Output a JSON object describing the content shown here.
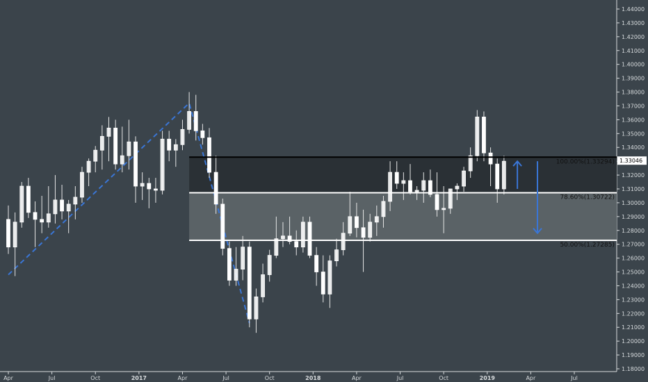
{
  "colors": {
    "background": "#3b444b",
    "axis_line": "#d8dcde",
    "text": "#d8dcde",
    "candle_up": "#ffffff",
    "candle_down": "#ffffff",
    "wick": "#e8e8e8",
    "trend_line": "#3a76d6",
    "zone_upper": "#2a3035",
    "zone_lower": "#5a6266",
    "level_line_top": "#000000",
    "level_line": "#ffffff",
    "price_marker_bg": "#ffffff",
    "price_marker_text": "#000000",
    "arrow": "#3a76d6"
  },
  "chart_data": {
    "type": "candlestick",
    "title": "",
    "xlabel": "",
    "ylabel": "",
    "ylim": [
      1.18,
      1.45
    ],
    "y_ticks": [
      "1.18000",
      "1.19000",
      "1.20000",
      "1.21000",
      "1.22000",
      "1.23000",
      "1.24000",
      "1.25000",
      "1.26000",
      "1.27000",
      "1.28000",
      "1.29000",
      "1.30000",
      "1.31000",
      "1.32000",
      "1.33000",
      "1.34000",
      "1.35000",
      "1.36000",
      "1.37000",
      "1.38000",
      "1.39000",
      "1.40000",
      "1.41000",
      "1.42000",
      "1.43000",
      "1.44000"
    ],
    "x_ticks": [
      {
        "label": "Apr",
        "week": 0,
        "bold": false
      },
      {
        "label": "Jul",
        "week": 13,
        "bold": false
      },
      {
        "label": "Oct",
        "week": 26,
        "bold": false
      },
      {
        "label": "2017",
        "week": 39,
        "bold": true
      },
      {
        "label": "Apr",
        "week": 52,
        "bold": false
      },
      {
        "label": "Jul",
        "week": 65,
        "bold": false
      },
      {
        "label": "Oct",
        "week": 78,
        "bold": false
      },
      {
        "label": "2018",
        "week": 91,
        "bold": true
      },
      {
        "label": "Apr",
        "week": 104,
        "bold": false
      },
      {
        "label": "Jul",
        "week": 117,
        "bold": false
      },
      {
        "label": "Oct",
        "week": 130,
        "bold": false
      },
      {
        "label": "2019",
        "week": 143,
        "bold": true
      },
      {
        "label": "Apr",
        "week": 156,
        "bold": false
      },
      {
        "label": "Jul",
        "week": 169,
        "bold": false
      }
    ],
    "week_range": [
      0,
      182
    ],
    "candles": [
      {
        "w": 0,
        "o": 1.288,
        "h": 1.298,
        "l": 1.263,
        "c": 1.268
      },
      {
        "w": 2,
        "o": 1.268,
        "h": 1.293,
        "l": 1.247,
        "c": 1.286
      },
      {
        "w": 4,
        "o": 1.286,
        "h": 1.315,
        "l": 1.282,
        "c": 1.312
      },
      {
        "w": 6,
        "o": 1.312,
        "h": 1.318,
        "l": 1.289,
        "c": 1.293
      },
      {
        "w": 8,
        "o": 1.293,
        "h": 1.301,
        "l": 1.268,
        "c": 1.288
      },
      {
        "w": 10,
        "o": 1.288,
        "h": 1.305,
        "l": 1.278,
        "c": 1.286
      },
      {
        "w": 12,
        "o": 1.286,
        "h": 1.312,
        "l": 1.282,
        "c": 1.292
      },
      {
        "w": 14,
        "o": 1.292,
        "h": 1.32,
        "l": 1.285,
        "c": 1.302
      },
      {
        "w": 16,
        "o": 1.302,
        "h": 1.313,
        "l": 1.288,
        "c": 1.294
      },
      {
        "w": 18,
        "o": 1.294,
        "h": 1.302,
        "l": 1.278,
        "c": 1.299
      },
      {
        "w": 20,
        "o": 1.299,
        "h": 1.312,
        "l": 1.288,
        "c": 1.304
      },
      {
        "w": 22,
        "o": 1.304,
        "h": 1.326,
        "l": 1.3,
        "c": 1.322
      },
      {
        "w": 24,
        "o": 1.322,
        "h": 1.332,
        "l": 1.312,
        "c": 1.33
      },
      {
        "w": 26,
        "o": 1.33,
        "h": 1.341,
        "l": 1.322,
        "c": 1.338
      },
      {
        "w": 28,
        "o": 1.338,
        "h": 1.356,
        "l": 1.324,
        "c": 1.348
      },
      {
        "w": 30,
        "o": 1.348,
        "h": 1.362,
        "l": 1.33,
        "c": 1.354
      },
      {
        "w": 32,
        "o": 1.354,
        "h": 1.36,
        "l": 1.324,
        "c": 1.328
      },
      {
        "w": 34,
        "o": 1.328,
        "h": 1.355,
        "l": 1.322,
        "c": 1.334
      },
      {
        "w": 36,
        "o": 1.334,
        "h": 1.36,
        "l": 1.324,
        "c": 1.344
      },
      {
        "w": 38,
        "o": 1.344,
        "h": 1.348,
        "l": 1.3,
        "c": 1.312
      },
      {
        "w": 40,
        "o": 1.312,
        "h": 1.322,
        "l": 1.302,
        "c": 1.314
      },
      {
        "w": 42,
        "o": 1.314,
        "h": 1.318,
        "l": 1.296,
        "c": 1.31
      },
      {
        "w": 44,
        "o": 1.31,
        "h": 1.318,
        "l": 1.3,
        "c": 1.309
      },
      {
        "w": 46,
        "o": 1.309,
        "h": 1.352,
        "l": 1.306,
        "c": 1.346
      },
      {
        "w": 48,
        "o": 1.346,
        "h": 1.352,
        "l": 1.33,
        "c": 1.338
      },
      {
        "w": 50,
        "o": 1.338,
        "h": 1.346,
        "l": 1.326,
        "c": 1.342
      },
      {
        "w": 52,
        "o": 1.342,
        "h": 1.36,
        "l": 1.338,
        "c": 1.353
      },
      {
        "w": 54,
        "o": 1.353,
        "h": 1.38,
        "l": 1.35,
        "c": 1.366
      },
      {
        "w": 56,
        "o": 1.366,
        "h": 1.378,
        "l": 1.345,
        "c": 1.352
      },
      {
        "w": 58,
        "o": 1.352,
        "h": 1.357,
        "l": 1.342,
        "c": 1.347
      },
      {
        "w": 60,
        "o": 1.347,
        "h": 1.354,
        "l": 1.318,
        "c": 1.322
      },
      {
        "w": 62,
        "o": 1.322,
        "h": 1.334,
        "l": 1.292,
        "c": 1.299
      },
      {
        "w": 64,
        "o": 1.299,
        "h": 1.303,
        "l": 1.262,
        "c": 1.267
      },
      {
        "w": 66,
        "o": 1.267,
        "h": 1.272,
        "l": 1.24,
        "c": 1.244
      },
      {
        "w": 68,
        "o": 1.244,
        "h": 1.268,
        "l": 1.24,
        "c": 1.252
      },
      {
        "w": 70,
        "o": 1.252,
        "h": 1.276,
        "l": 1.244,
        "c": 1.268
      },
      {
        "w": 72,
        "o": 1.268,
        "h": 1.272,
        "l": 1.21,
        "c": 1.216
      },
      {
        "w": 74,
        "o": 1.216,
        "h": 1.238,
        "l": 1.206,
        "c": 1.232
      },
      {
        "w": 76,
        "o": 1.232,
        "h": 1.256,
        "l": 1.228,
        "c": 1.248
      },
      {
        "w": 78,
        "o": 1.248,
        "h": 1.266,
        "l": 1.243,
        "c": 1.262
      },
      {
        "w": 80,
        "o": 1.262,
        "h": 1.29,
        "l": 1.26,
        "c": 1.274
      },
      {
        "w": 82,
        "o": 1.274,
        "h": 1.286,
        "l": 1.268,
        "c": 1.276
      },
      {
        "w": 84,
        "o": 1.276,
        "h": 1.29,
        "l": 1.27,
        "c": 1.272
      },
      {
        "w": 86,
        "o": 1.272,
        "h": 1.28,
        "l": 1.262,
        "c": 1.268
      },
      {
        "w": 88,
        "o": 1.268,
        "h": 1.29,
        "l": 1.264,
        "c": 1.286
      },
      {
        "w": 90,
        "o": 1.286,
        "h": 1.29,
        "l": 1.26,
        "c": 1.262
      },
      {
        "w": 92,
        "o": 1.262,
        "h": 1.268,
        "l": 1.24,
        "c": 1.25
      },
      {
        "w": 94,
        "o": 1.25,
        "h": 1.262,
        "l": 1.228,
        "c": 1.234
      },
      {
        "w": 96,
        "o": 1.234,
        "h": 1.262,
        "l": 1.224,
        "c": 1.258
      },
      {
        "w": 98,
        "o": 1.258,
        "h": 1.274,
        "l": 1.254,
        "c": 1.266
      },
      {
        "w": 100,
        "o": 1.266,
        "h": 1.286,
        "l": 1.262,
        "c": 1.278
      },
      {
        "w": 102,
        "o": 1.278,
        "h": 1.308,
        "l": 1.276,
        "c": 1.29
      },
      {
        "w": 104,
        "o": 1.29,
        "h": 1.3,
        "l": 1.275,
        "c": 1.282
      },
      {
        "w": 106,
        "o": 1.282,
        "h": 1.295,
        "l": 1.25,
        "c": 1.275
      },
      {
        "w": 108,
        "o": 1.275,
        "h": 1.292,
        "l": 1.272,
        "c": 1.286
      },
      {
        "w": 110,
        "o": 1.286,
        "h": 1.298,
        "l": 1.276,
        "c": 1.29
      },
      {
        "w": 112,
        "o": 1.29,
        "h": 1.305,
        "l": 1.282,
        "c": 1.301
      },
      {
        "w": 114,
        "o": 1.301,
        "h": 1.33,
        "l": 1.294,
        "c": 1.322
      },
      {
        "w": 116,
        "o": 1.322,
        "h": 1.33,
        "l": 1.31,
        "c": 1.314
      },
      {
        "w": 118,
        "o": 1.314,
        "h": 1.322,
        "l": 1.302,
        "c": 1.316
      },
      {
        "w": 120,
        "o": 1.316,
        "h": 1.328,
        "l": 1.306,
        "c": 1.308
      },
      {
        "w": 122,
        "o": 1.308,
        "h": 1.312,
        "l": 1.302,
        "c": 1.309
      },
      {
        "w": 124,
        "o": 1.309,
        "h": 1.322,
        "l": 1.3,
        "c": 1.316
      },
      {
        "w": 126,
        "o": 1.316,
        "h": 1.324,
        "l": 1.304,
        "c": 1.306
      },
      {
        "w": 128,
        "o": 1.306,
        "h": 1.322,
        "l": 1.29,
        "c": 1.295
      },
      {
        "w": 130,
        "o": 1.295,
        "h": 1.312,
        "l": 1.278,
        "c": 1.296
      },
      {
        "w": 132,
        "o": 1.296,
        "h": 1.31,
        "l": 1.292,
        "c": 1.31
      },
      {
        "w": 134,
        "o": 1.31,
        "h": 1.314,
        "l": 1.302,
        "c": 1.312
      },
      {
        "w": 136,
        "o": 1.312,
        "h": 1.326,
        "l": 1.308,
        "c": 1.323
      },
      {
        "w": 138,
        "o": 1.323,
        "h": 1.34,
        "l": 1.318,
        "c": 1.334
      },
      {
        "w": 140,
        "o": 1.334,
        "h": 1.367,
        "l": 1.33,
        "c": 1.362
      },
      {
        "w": 142,
        "o": 1.362,
        "h": 1.366,
        "l": 1.33,
        "c": 1.336
      },
      {
        "w": 144,
        "o": 1.336,
        "h": 1.34,
        "l": 1.312,
        "c": 1.328
      },
      {
        "w": 146,
        "o": 1.328,
        "h": 1.332,
        "l": 1.3,
        "c": 1.31
      },
      {
        "w": 148,
        "o": 1.31,
        "h": 1.334,
        "l": 1.306,
        "c": 1.33
      }
    ],
    "trend_line": [
      {
        "w": 0,
        "y": 1.248
      },
      {
        "w": 54,
        "y": 1.372
      },
      {
        "w": 72,
        "y": 1.213
      }
    ],
    "levels": [
      {
        "price": 1.33294,
        "label": "100.00%(1.33294)",
        "color": "#000000"
      },
      {
        "price": 1.30722,
        "label": "78.60%(1.30722)",
        "color": "#ffffff"
      },
      {
        "price": 1.27285,
        "label": "50.00%(1.27285)",
        "color": "#ffffff"
      }
    ],
    "zones_start_week": 54,
    "current_price": 1.33046,
    "current_price_label": "1.33046",
    "arrows": [
      {
        "w": 152,
        "from": 1.31,
        "to": 1.33
      },
      {
        "w": 158,
        "from": 1.33,
        "to": 1.278
      }
    ]
  }
}
